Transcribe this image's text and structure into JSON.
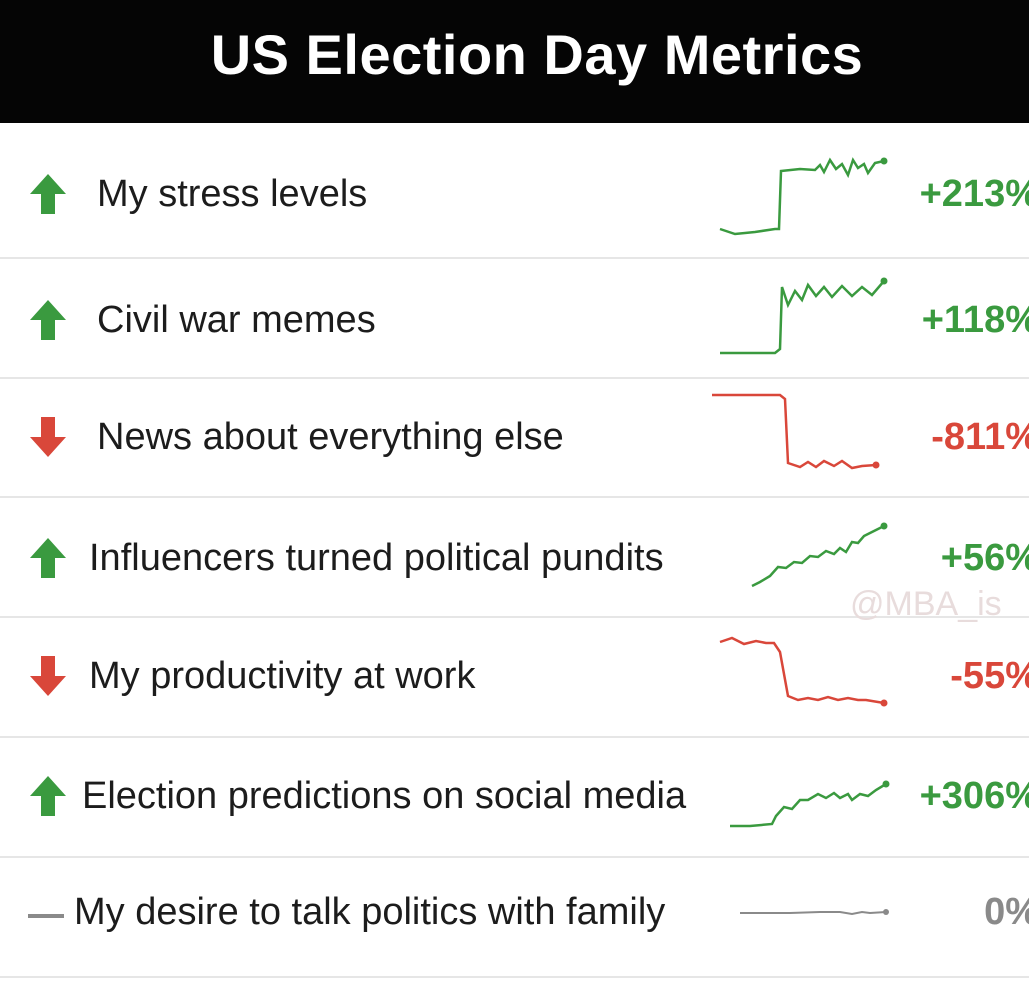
{
  "title": "US Election Day Metrics",
  "watermark": "@MBA_is",
  "colors": {
    "up": "#3a9a3f",
    "down": "#d9473a",
    "flat": "#8a8a8a"
  },
  "rows": [
    {
      "label": "My stress levels",
      "change": "+213%",
      "direction": "up",
      "icon": "arrow-up-icon"
    },
    {
      "label": "Civil war memes",
      "change": "+118%",
      "direction": "up",
      "icon": "arrow-up-icon"
    },
    {
      "label": "News about everything else",
      "change": "-811%",
      "direction": "down",
      "icon": "arrow-down-icon"
    },
    {
      "label": "Influencers turned political pundits",
      "change": "+56%",
      "direction": "up",
      "icon": "arrow-up-icon"
    },
    {
      "label": "My productivity at work",
      "change": "-55%",
      "direction": "down",
      "icon": "arrow-down-icon"
    },
    {
      "label": "Election predictions on social media",
      "change": "+306%",
      "direction": "up",
      "icon": "arrow-up-icon"
    },
    {
      "label": "My desire to talk politics with family",
      "change": "0%",
      "direction": "flat",
      "icon": "dash-icon"
    }
  ]
}
